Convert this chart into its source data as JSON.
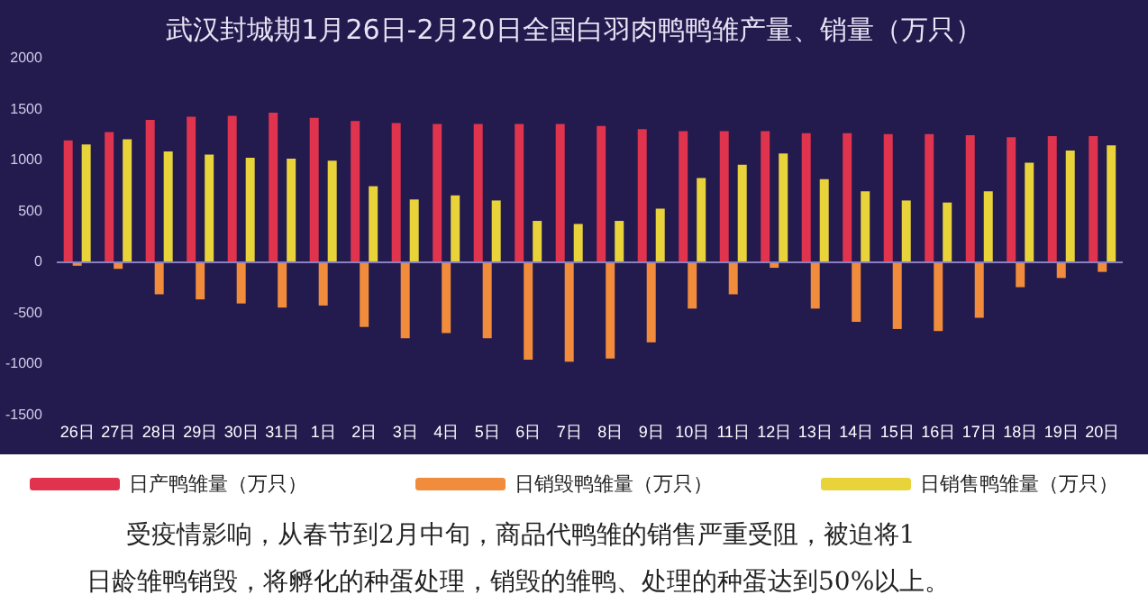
{
  "chart_data": {
    "type": "bar",
    "title": "武汉封城期1月26日-2月20日全国白羽肉鸭鸭雏产量、销量（万只）",
    "categories": [
      "26日",
      "27日",
      "28日",
      "29日",
      "30日",
      "31日",
      "1日",
      "2日",
      "3日",
      "4日",
      "5日",
      "6日",
      "7日",
      "8日",
      "9日",
      "10日",
      "11日",
      "12日",
      "13日",
      "14日",
      "15日",
      "16日",
      "17日",
      "18日",
      "19日",
      "20日"
    ],
    "series": [
      {
        "name": "日产鸭雏量（万只）",
        "color": "#e0344e",
        "values": [
          1190,
          1270,
          1390,
          1420,
          1430,
          1460,
          1410,
          1380,
          1360,
          1350,
          1350,
          1350,
          1350,
          1330,
          1300,
          1280,
          1280,
          1280,
          1260,
          1260,
          1250,
          1250,
          1240,
          1220,
          1230,
          1230
        ]
      },
      {
        "name": "日销毁鸭雏量（万只）",
        "color": "#f08c3c",
        "values": [
          -40,
          -70,
          -320,
          -370,
          -410,
          -450,
          -430,
          -640,
          -750,
          -700,
          -750,
          -960,
          -980,
          -950,
          -790,
          -460,
          -320,
          -60,
          -460,
          -590,
          -660,
          -680,
          -550,
          -250,
          -160,
          -100
        ]
      },
      {
        "name": "日销售鸭雏量（万只）",
        "color": "#e8d43a",
        "values": [
          1150,
          1200,
          1080,
          1050,
          1020,
          1010,
          990,
          740,
          610,
          650,
          600,
          400,
          370,
          400,
          520,
          820,
          950,
          1060,
          810,
          690,
          600,
          580,
          690,
          970,
          1090,
          1140
        ]
      }
    ],
    "ylim": [
      -1500,
      2000
    ],
    "yticks": [
      -1500,
      -1000,
      -500,
      0,
      500,
      1000,
      1500,
      2000
    ],
    "ref_lines": [
      {
        "axis": "y",
        "value": 0,
        "color": "#8a7fc0"
      }
    ],
    "grid": false,
    "legend": "bottom",
    "annotations": [
      "受疫情影响，从春节到2月中旬，商品代鸭雏的销售严重受阻，被迫将1",
      "日龄雏鸭销毁，将孵化的种蛋处理，销毁的雏鸭、处理的种蛋达到50%以上。"
    ]
  }
}
